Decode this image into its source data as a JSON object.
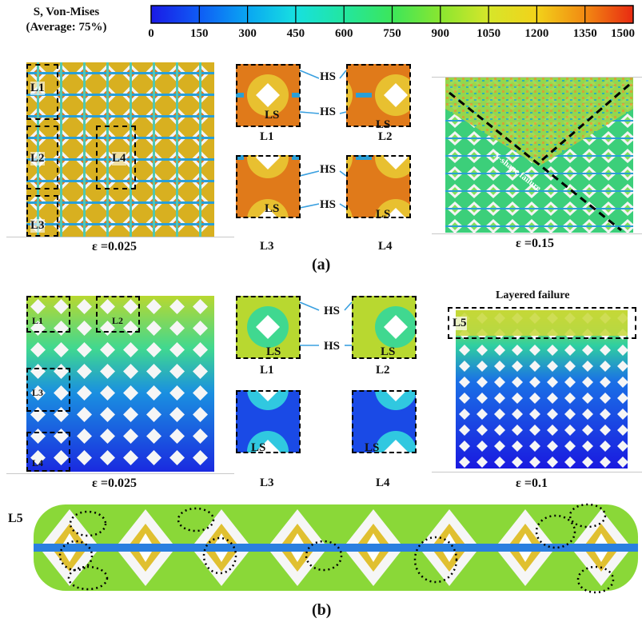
{
  "legend": {
    "title_line1": "S, Von-Mises",
    "title_line2": "(Average: 75%)",
    "ticks": [
      "0",
      "150",
      "300",
      "450",
      "600",
      "750",
      "900",
      "1050",
      "1200",
      "1350",
      "1500"
    ],
    "colors": [
      "#1a1ae6",
      "#0f5cf5",
      "#0aa6f2",
      "#17e0e0",
      "#22e6a0",
      "#3ce65a",
      "#8ae630",
      "#d6e62a",
      "#f2d21a",
      "#f28a12",
      "#e82a12"
    ]
  },
  "panel_a": {
    "label": "(a)",
    "left_strain": "ε =0.025",
    "right_strain": "ε =0.15",
    "left_boxes": [
      "L1",
      "L2",
      "L3",
      "L4"
    ],
    "zoom_labels": [
      "L1",
      "L2",
      "L3",
      "L4"
    ],
    "hs_label": "HS",
    "ls_label": "LS",
    "failure_text": "X-shape failure"
  },
  "panel_b": {
    "label": "(b)",
    "left_strain": "ε =0.025",
    "right_strain": "ε =0.1",
    "left_boxes": [
      "L1",
      "L2",
      "L3",
      "L4"
    ],
    "zoom_labels": [
      "L1",
      "L2",
      "L3",
      "L4"
    ],
    "hs_label": "HS",
    "ls_label": "LS",
    "layered_title": "Layered failure",
    "l5_box": "L5",
    "l5_side": "L5"
  }
}
